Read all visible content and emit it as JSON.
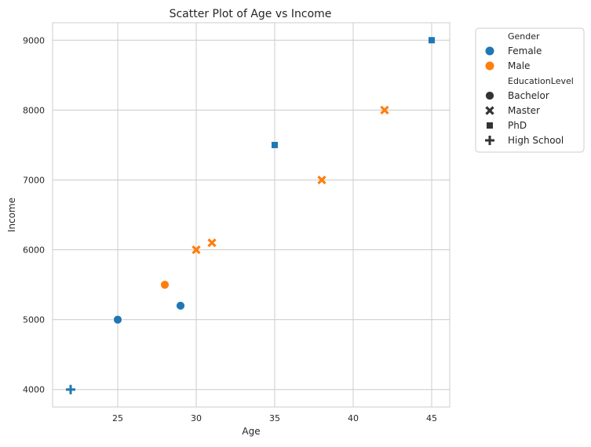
{
  "chart_data": {
    "type": "scatter",
    "title": "Scatter Plot of Age vs Income",
    "xlabel": "Age",
    "ylabel": "Income",
    "xlim": [
      20.85,
      46.15
    ],
    "ylim": [
      3750,
      9250
    ],
    "xticks": [
      25,
      30,
      35,
      40,
      45
    ],
    "yticks": [
      4000,
      5000,
      6000,
      7000,
      8000,
      9000
    ],
    "grid": true,
    "legend_position": "outside-right",
    "hue_title": "Gender",
    "style_title": "EducationLevel",
    "hue_levels": [
      {
        "name": "Female",
        "color": "#1f77b4"
      },
      {
        "name": "Male",
        "color": "#ff7f0e"
      }
    ],
    "style_levels": [
      {
        "name": "Bachelor",
        "marker": "circle"
      },
      {
        "name": "Master",
        "marker": "x"
      },
      {
        "name": "PhD",
        "marker": "square"
      },
      {
        "name": "High School",
        "marker": "plus"
      }
    ],
    "points": [
      {
        "x": 25,
        "y": 5000,
        "gender": "Female",
        "education": "Bachelor"
      },
      {
        "x": 29,
        "y": 5200,
        "gender": "Female",
        "education": "Bachelor"
      },
      {
        "x": 28,
        "y": 5500,
        "gender": "Male",
        "education": "Bachelor"
      },
      {
        "x": 30,
        "y": 6000,
        "gender": "Male",
        "education": "Master"
      },
      {
        "x": 31,
        "y": 6100,
        "gender": "Male",
        "education": "Master"
      },
      {
        "x": 38,
        "y": 7000,
        "gender": "Male",
        "education": "Master"
      },
      {
        "x": 42,
        "y": 8000,
        "gender": "Male",
        "education": "Master"
      },
      {
        "x": 35,
        "y": 7500,
        "gender": "Female",
        "education": "PhD"
      },
      {
        "x": 45,
        "y": 9000,
        "gender": "Female",
        "education": "PhD"
      },
      {
        "x": 22,
        "y": 4000,
        "gender": "Female",
        "education": "High School"
      }
    ]
  }
}
